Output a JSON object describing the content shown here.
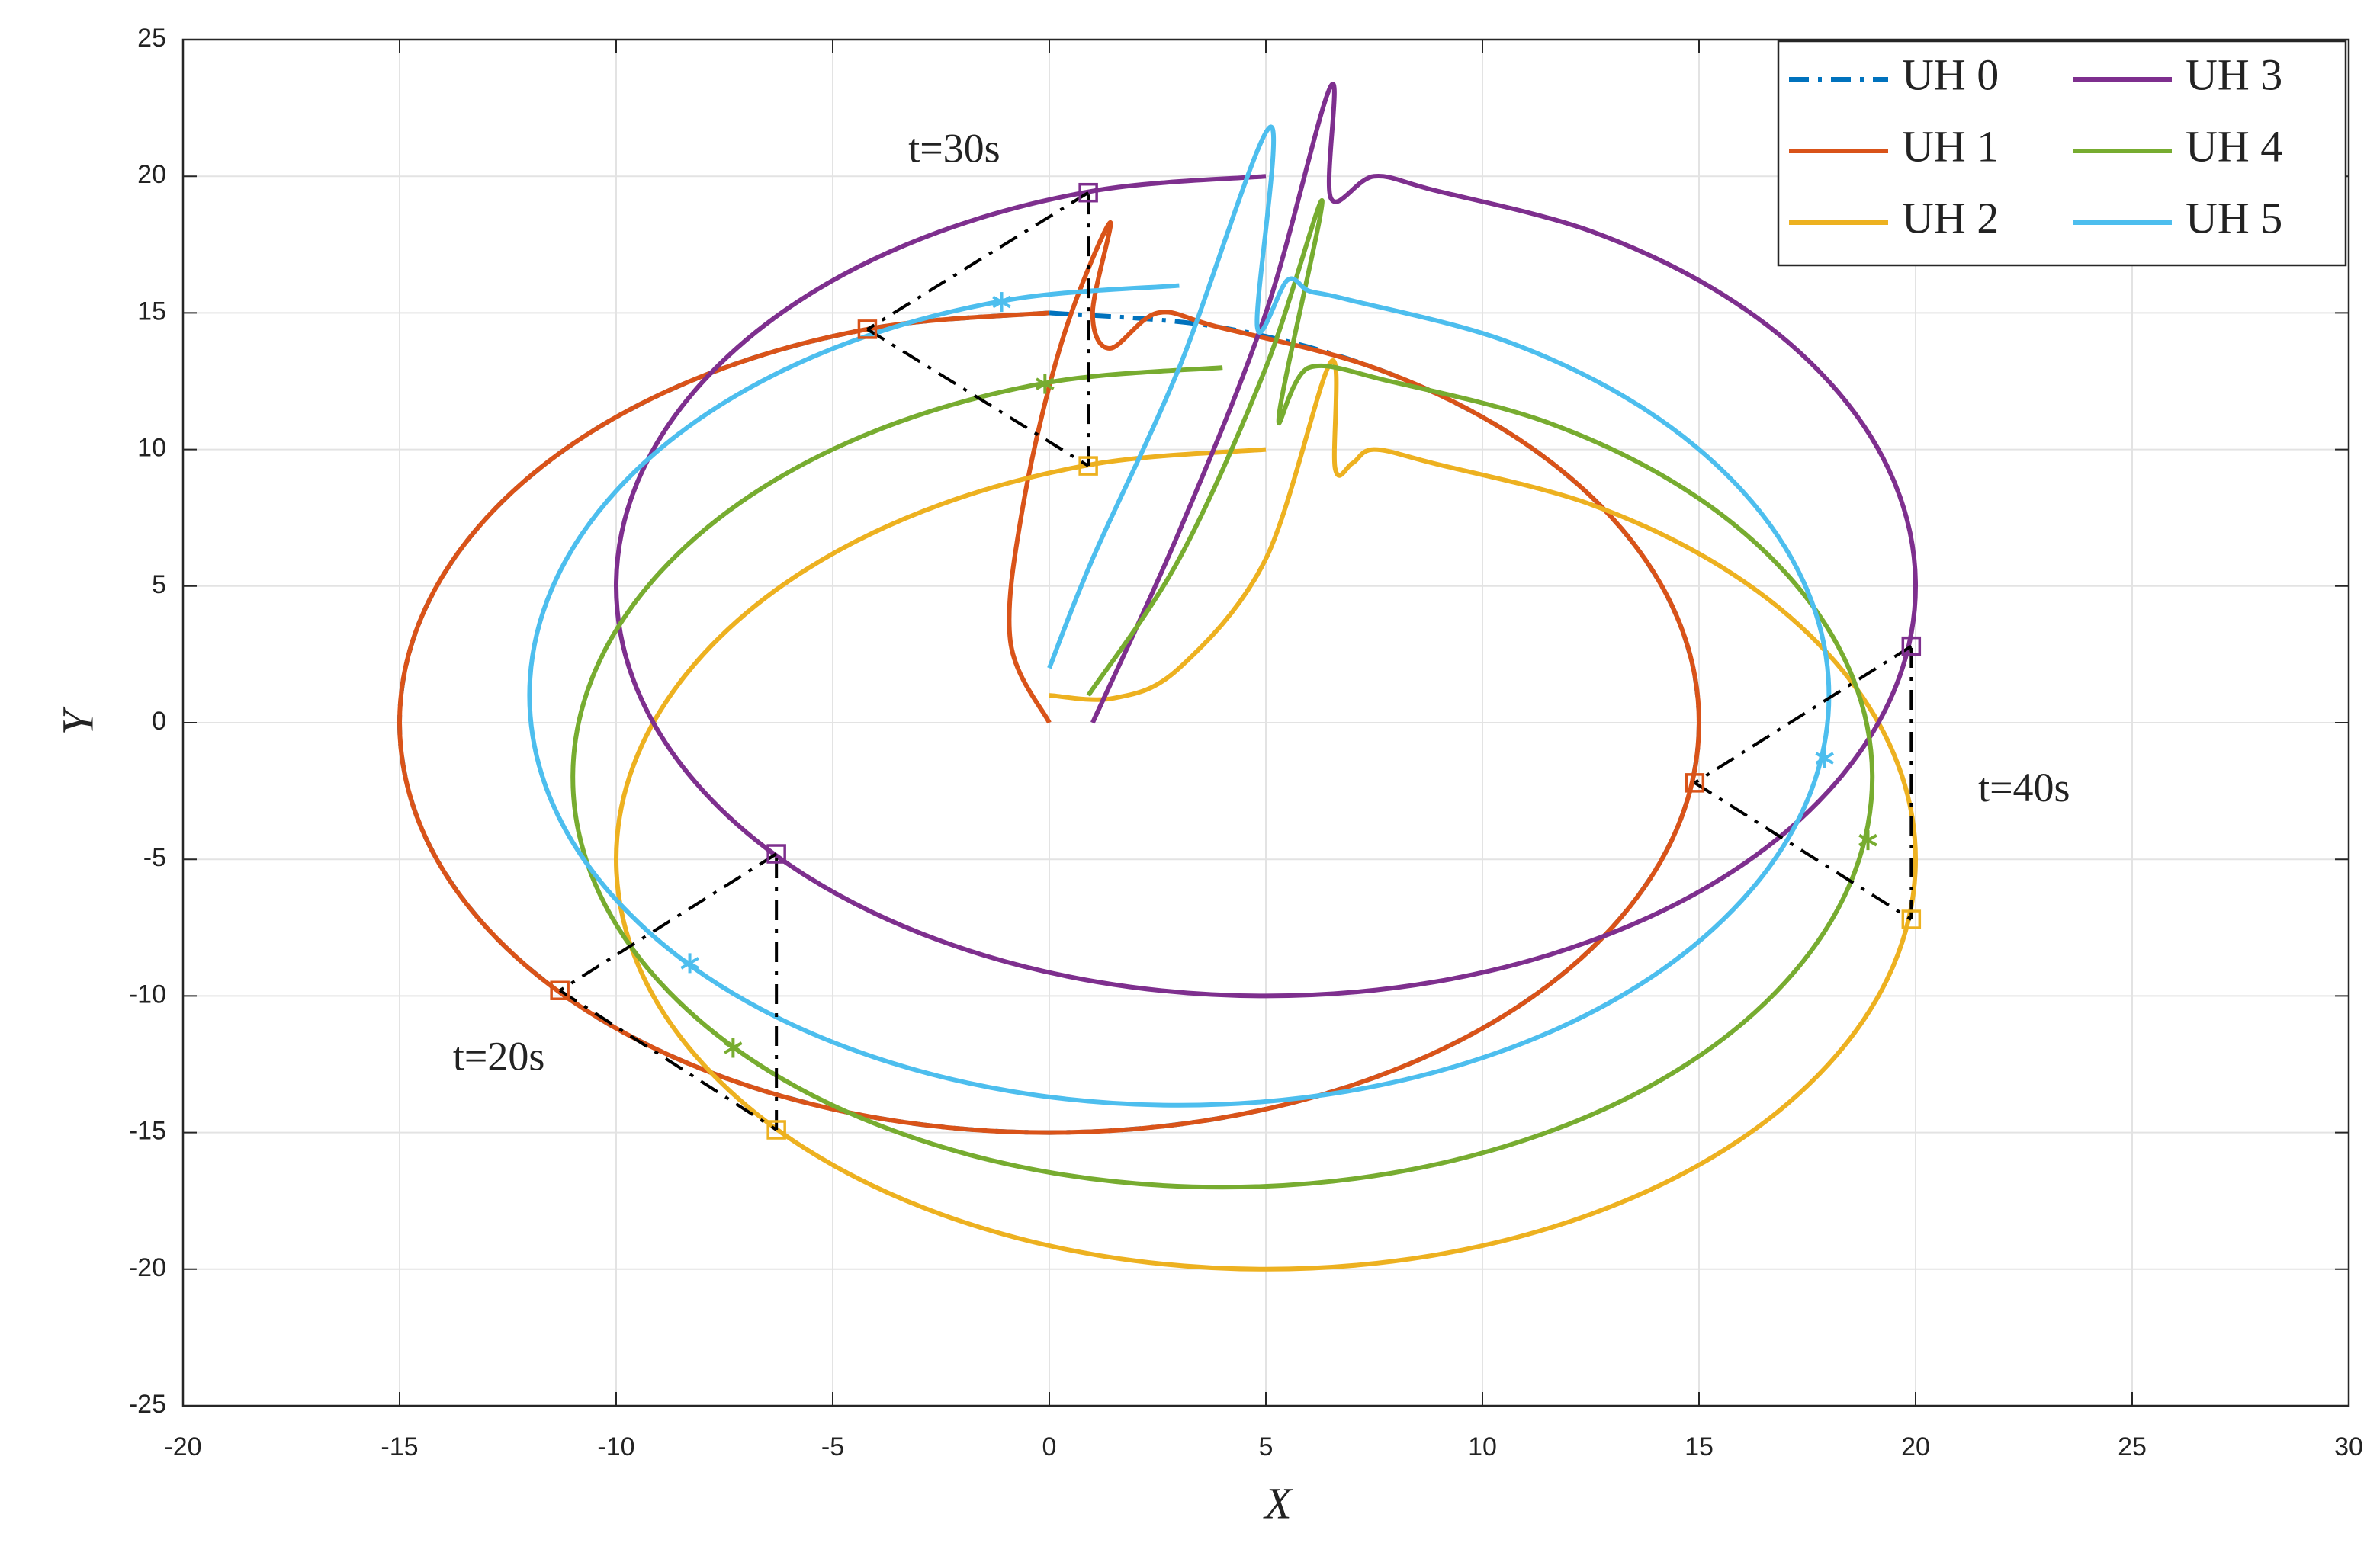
{
  "chart_data": {
    "type": "line",
    "x_label": "X",
    "y_label": "Y",
    "xlim": [
      -20,
      30
    ],
    "xticks": [
      -20,
      -15,
      -10,
      -5,
      0,
      5,
      10,
      15,
      20,
      25,
      30
    ],
    "ylim": [
      -25,
      25
    ],
    "yticks": [
      -25,
      -20,
      -15,
      -10,
      -5,
      0,
      5,
      10,
      15,
      20,
      25
    ],
    "grid": true,
    "legend_location": "upper right",
    "legend_columns": 2,
    "annotations": [
      "t=20s",
      "t=30s",
      "t=40s"
    ],
    "series": [
      {
        "name": "UH 0",
        "color": "#0072BD",
        "linestyle": "-.",
        "x": [
          0,
          3.88,
          7.5,
          10.61,
          12.99,
          14.49,
          15,
          14.49,
          12.99,
          10.61,
          7.5,
          3.88,
          0,
          -3.88,
          -7.5,
          -10.61,
          -12.99,
          -14.49,
          -15,
          -14.49,
          -12.99,
          -10.61,
          -7.5,
          -3.88,
          0
        ],
        "y": [
          15,
          14.49,
          12.99,
          10.61,
          7.5,
          3.88,
          0,
          -3.88,
          -7.5,
          -10.61,
          -12.99,
          -14.49,
          -15,
          -14.49,
          -12.99,
          -10.61,
          -7.5,
          -3.88,
          0,
          3.88,
          7.5,
          10.61,
          12.99,
          14.49,
          15
        ]
      },
      {
        "name": "UH 1",
        "color": "#D95319",
        "linestyle": "-",
        "marker": "square",
        "x": [
          0,
          -0.9,
          -0.6,
          0.3,
          1.4,
          1.0,
          1.4,
          2.5,
          3.88,
          7.5,
          10.61,
          12.99,
          14.49,
          15,
          14.49,
          12.99,
          10.61,
          7.5,
          3.88,
          0,
          -3.88,
          -7.5,
          -10.61,
          -12.99,
          -14.49,
          -15,
          -14.49,
          -12.99,
          -10.61,
          -7.5,
          -3.88,
          0
        ],
        "y": [
          0,
          3,
          8,
          14,
          18.3,
          15,
          13.7,
          15,
          14.49,
          12.99,
          10.61,
          7.5,
          3.88,
          0,
          -3.88,
          -7.5,
          -10.61,
          -12.99,
          -14.49,
          -15,
          -14.49,
          -12.99,
          -10.61,
          -7.5,
          -3.88,
          0,
          3.88,
          7.5,
          10.61,
          12.99,
          14.49,
          15
        ],
        "marker_x": [
          -11.3,
          -4.2,
          14.9
        ],
        "marker_y": [
          -9.8,
          14.4,
          -2.2
        ]
      },
      {
        "name": "UH 2",
        "color": "#EDB120",
        "linestyle": "-",
        "marker": "square",
        "x": [
          0,
          1.5,
          3,
          5,
          6.5,
          6.6,
          7,
          7.5,
          8.88,
          12.5,
          15.61,
          17.99,
          19.49,
          20,
          19.49,
          17.99,
          15.61,
          12.5,
          8.88,
          5,
          1.12,
          -2.5,
          -5.61,
          -7.99,
          -9.49,
          -10,
          -9.49,
          -7.99,
          -5.61,
          -2.5,
          1.12,
          5
        ],
        "y": [
          1,
          0.9,
          2,
          6,
          13.2,
          9.3,
          9.5,
          10,
          9.49,
          7.99,
          5.61,
          2.5,
          -1.12,
          -5,
          -8.88,
          -12.5,
          -15.61,
          -17.99,
          -19.49,
          -20,
          -19.49,
          -17.99,
          -15.61,
          -12.5,
          -8.88,
          -5,
          -1.12,
          2.5,
          5.61,
          7.99,
          9.49,
          10
        ],
        "marker_x": [
          -6.3,
          0.9,
          19.9
        ],
        "marker_y": [
          -14.9,
          9.4,
          -7.2
        ]
      },
      {
        "name": "UH 3",
        "color": "#7E2F8E",
        "linestyle": "-",
        "marker": "square",
        "x": [
          1,
          3,
          5,
          6.5,
          6.5,
          7.5,
          8.88,
          12.5,
          15.61,
          17.99,
          19.49,
          20,
          19.49,
          17.99,
          15.61,
          12.5,
          8.88,
          5,
          1.12,
          -2.5,
          -5.61,
          -7.99,
          -9.49,
          -10,
          -9.49,
          -7.99,
          -5.61,
          -2.5,
          1.12,
          5
        ],
        "y": [
          0,
          7,
          15,
          23.3,
          19.2,
          20,
          19.49,
          17.99,
          15.61,
          12.5,
          8.88,
          5,
          1.12,
          -2.5,
          -5.61,
          -7.99,
          -9.49,
          -10,
          -9.49,
          -7.99,
          -5.61,
          -2.5,
          1.12,
          5,
          8.88,
          12.5,
          15.61,
          17.99,
          19.49,
          20
        ],
        "marker_x": [
          -6.3,
          0.9,
          19.9
        ],
        "marker_y": [
          -4.8,
          19.4,
          2.8
        ]
      },
      {
        "name": "UH 4",
        "color": "#77AC30",
        "linestyle": "-",
        "marker": "asterisk",
        "x": [
          0.9,
          3,
          5,
          6.3,
          5.3,
          6,
          7.88,
          11.5,
          14.61,
          16.99,
          18.49,
          19,
          18.49,
          16.99,
          14.61,
          11.5,
          7.88,
          4,
          0.12,
          -3.5,
          -6.61,
          -8.99,
          -10.49,
          -11,
          -10.49,
          -8.99,
          -6.61,
          -3.5,
          0.12,
          4
        ],
        "y": [
          1,
          6,
          13,
          19.1,
          11.2,
          13,
          12.49,
          10.99,
          8.61,
          5.5,
          1.88,
          -2,
          -5.88,
          -9.5,
          -12.61,
          -14.99,
          -16.49,
          -17,
          -16.49,
          -14.99,
          -12.61,
          -9.5,
          -5.88,
          -2,
          1.88,
          5.5,
          8.61,
          10.99,
          12.49,
          13
        ],
        "marker_x": [
          -7.3,
          -0.1,
          18.9
        ],
        "marker_y": [
          -11.9,
          12.4,
          -4.3
        ]
      },
      {
        "name": "UH 5",
        "color": "#4DBEEE",
        "linestyle": "-",
        "marker": "asterisk",
        "x": [
          0,
          1,
          3,
          5.1,
          4.8,
          5.5,
          6,
          6.88,
          10.5,
          13.61,
          15.99,
          17.49,
          18,
          17.49,
          15.99,
          13.61,
          10.5,
          6.88,
          3,
          -0.88,
          -4.5,
          -7.61,
          -9.99,
          -11.49,
          -12,
          -11.49,
          -9.99,
          -7.61,
          -4.5,
          -0.88,
          3
        ],
        "y": [
          2,
          6,
          13,
          21.8,
          14.5,
          16.2,
          15.8,
          15.49,
          13.99,
          11.61,
          8.5,
          4.88,
          1,
          -2.88,
          -6.5,
          -9.61,
          -11.99,
          -13.49,
          -14,
          -13.49,
          -11.99,
          -9.61,
          -6.5,
          -2.88,
          1,
          4.88,
          8.5,
          11.61,
          13.99,
          15.49,
          16
        ],
        "marker_x": [
          -8.3,
          -1.1,
          17.9
        ],
        "marker_y": [
          -8.8,
          15.4,
          -1.3
        ]
      }
    ]
  }
}
